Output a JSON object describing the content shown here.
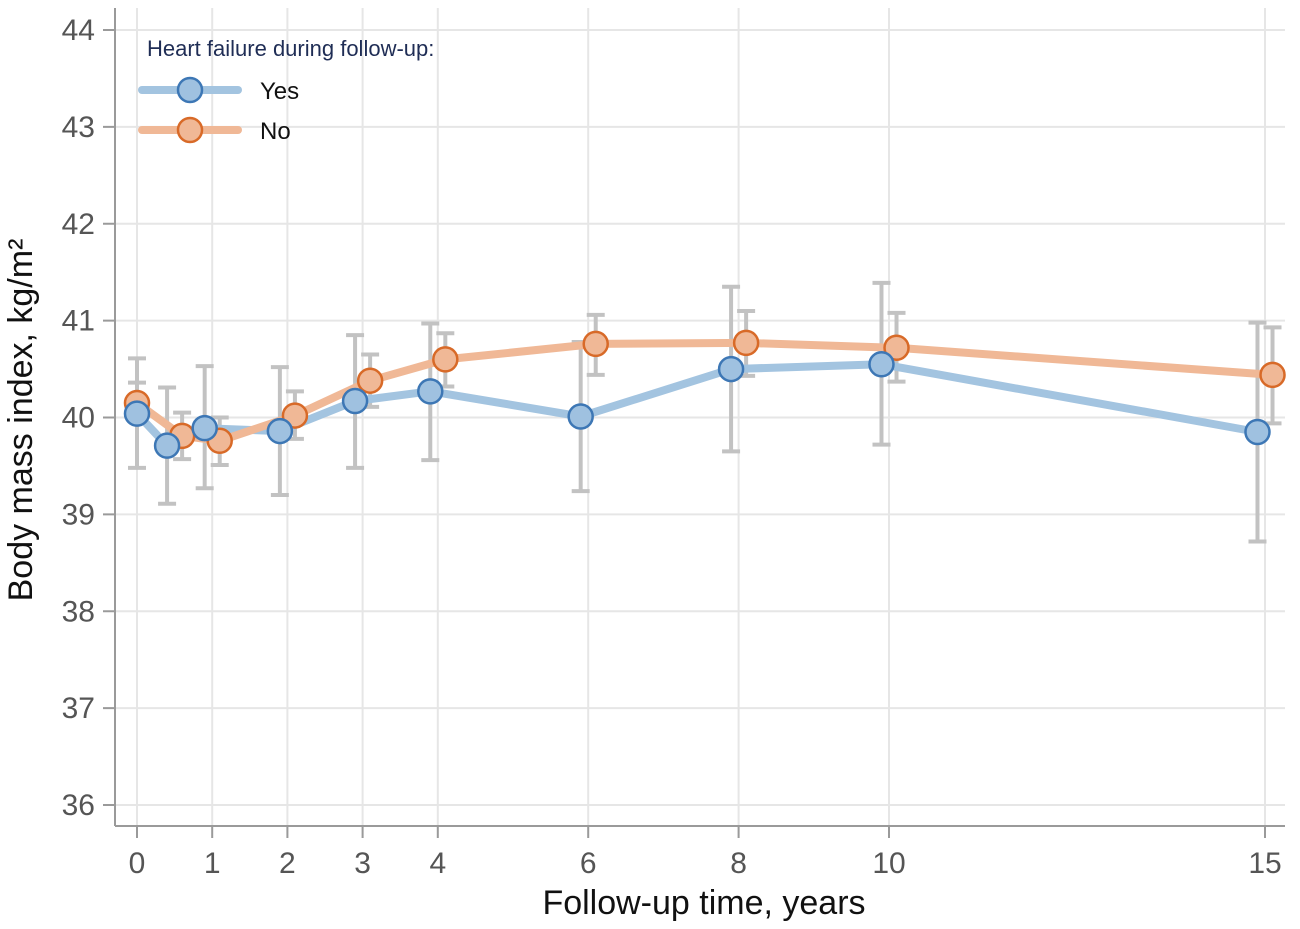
{
  "chart_data": {
    "type": "line",
    "xlabel": "Follow-up time, years",
    "ylabel": "Body mass index, kg/m²",
    "xlim": [
      -0.3,
      15.3
    ],
    "ylim": [
      35.8,
      44.2
    ],
    "x_ticks": [
      0,
      1,
      2,
      3,
      4,
      6,
      8,
      10,
      15
    ],
    "y_ticks": [
      36,
      37,
      38,
      39,
      40,
      41,
      42,
      43,
      44
    ],
    "grid": true,
    "legend": {
      "title": "Heart failure during follow-up:",
      "position": "top-left"
    },
    "series": [
      {
        "name": "Yes",
        "line_color": "#a3c4e0",
        "marker_fill": "#9fc1e0",
        "marker_edge": "#3d77b5",
        "points": [
          {
            "x": 0,
            "y": 40.04,
            "lo": 39.48,
            "hi": 40.61
          },
          {
            "x": 0.4,
            "y": 39.71,
            "lo": 39.11,
            "hi": 40.31
          },
          {
            "x": 0.9,
            "y": 39.89,
            "lo": 39.27,
            "hi": 40.53
          },
          {
            "x": 1.9,
            "y": 39.86,
            "lo": 39.2,
            "hi": 40.52
          },
          {
            "x": 2.9,
            "y": 40.17,
            "lo": 39.48,
            "hi": 40.85
          },
          {
            "x": 3.9,
            "y": 40.27,
            "lo": 39.56,
            "hi": 40.97
          },
          {
            "x": 5.9,
            "y": 40.01,
            "lo": 39.24,
            "hi": 40.78
          },
          {
            "x": 7.9,
            "y": 40.5,
            "lo": 39.65,
            "hi": 41.35
          },
          {
            "x": 9.9,
            "y": 40.55,
            "lo": 39.72,
            "hi": 41.39
          },
          {
            "x": 14.9,
            "y": 39.85,
            "lo": 38.72,
            "hi": 40.98
          }
        ]
      },
      {
        "name": "No",
        "line_color": "#f0b896",
        "marker_fill": "#f0b896",
        "marker_edge": "#d86a28",
        "points": [
          {
            "x": 0,
            "y": 40.15,
            "lo": 39.96,
            "hi": 40.36
          },
          {
            "x": 0.6,
            "y": 39.81,
            "lo": 39.57,
            "hi": 40.05
          },
          {
            "x": 1.1,
            "y": 39.76,
            "lo": 39.51,
            "hi": 40.0
          },
          {
            "x": 2.1,
            "y": 40.02,
            "lo": 39.78,
            "hi": 40.27
          },
          {
            "x": 3.1,
            "y": 40.38,
            "lo": 40.11,
            "hi": 40.65
          },
          {
            "x": 4.1,
            "y": 40.6,
            "lo": 40.32,
            "hi": 40.87
          },
          {
            "x": 6.1,
            "y": 40.76,
            "lo": 40.44,
            "hi": 41.06
          },
          {
            "x": 8.1,
            "y": 40.77,
            "lo": 40.43,
            "hi": 41.1
          },
          {
            "x": 10.1,
            "y": 40.72,
            "lo": 40.37,
            "hi": 41.08
          },
          {
            "x": 15.1,
            "y": 40.44,
            "lo": 39.94,
            "hi": 40.93
          }
        ]
      }
    ]
  }
}
